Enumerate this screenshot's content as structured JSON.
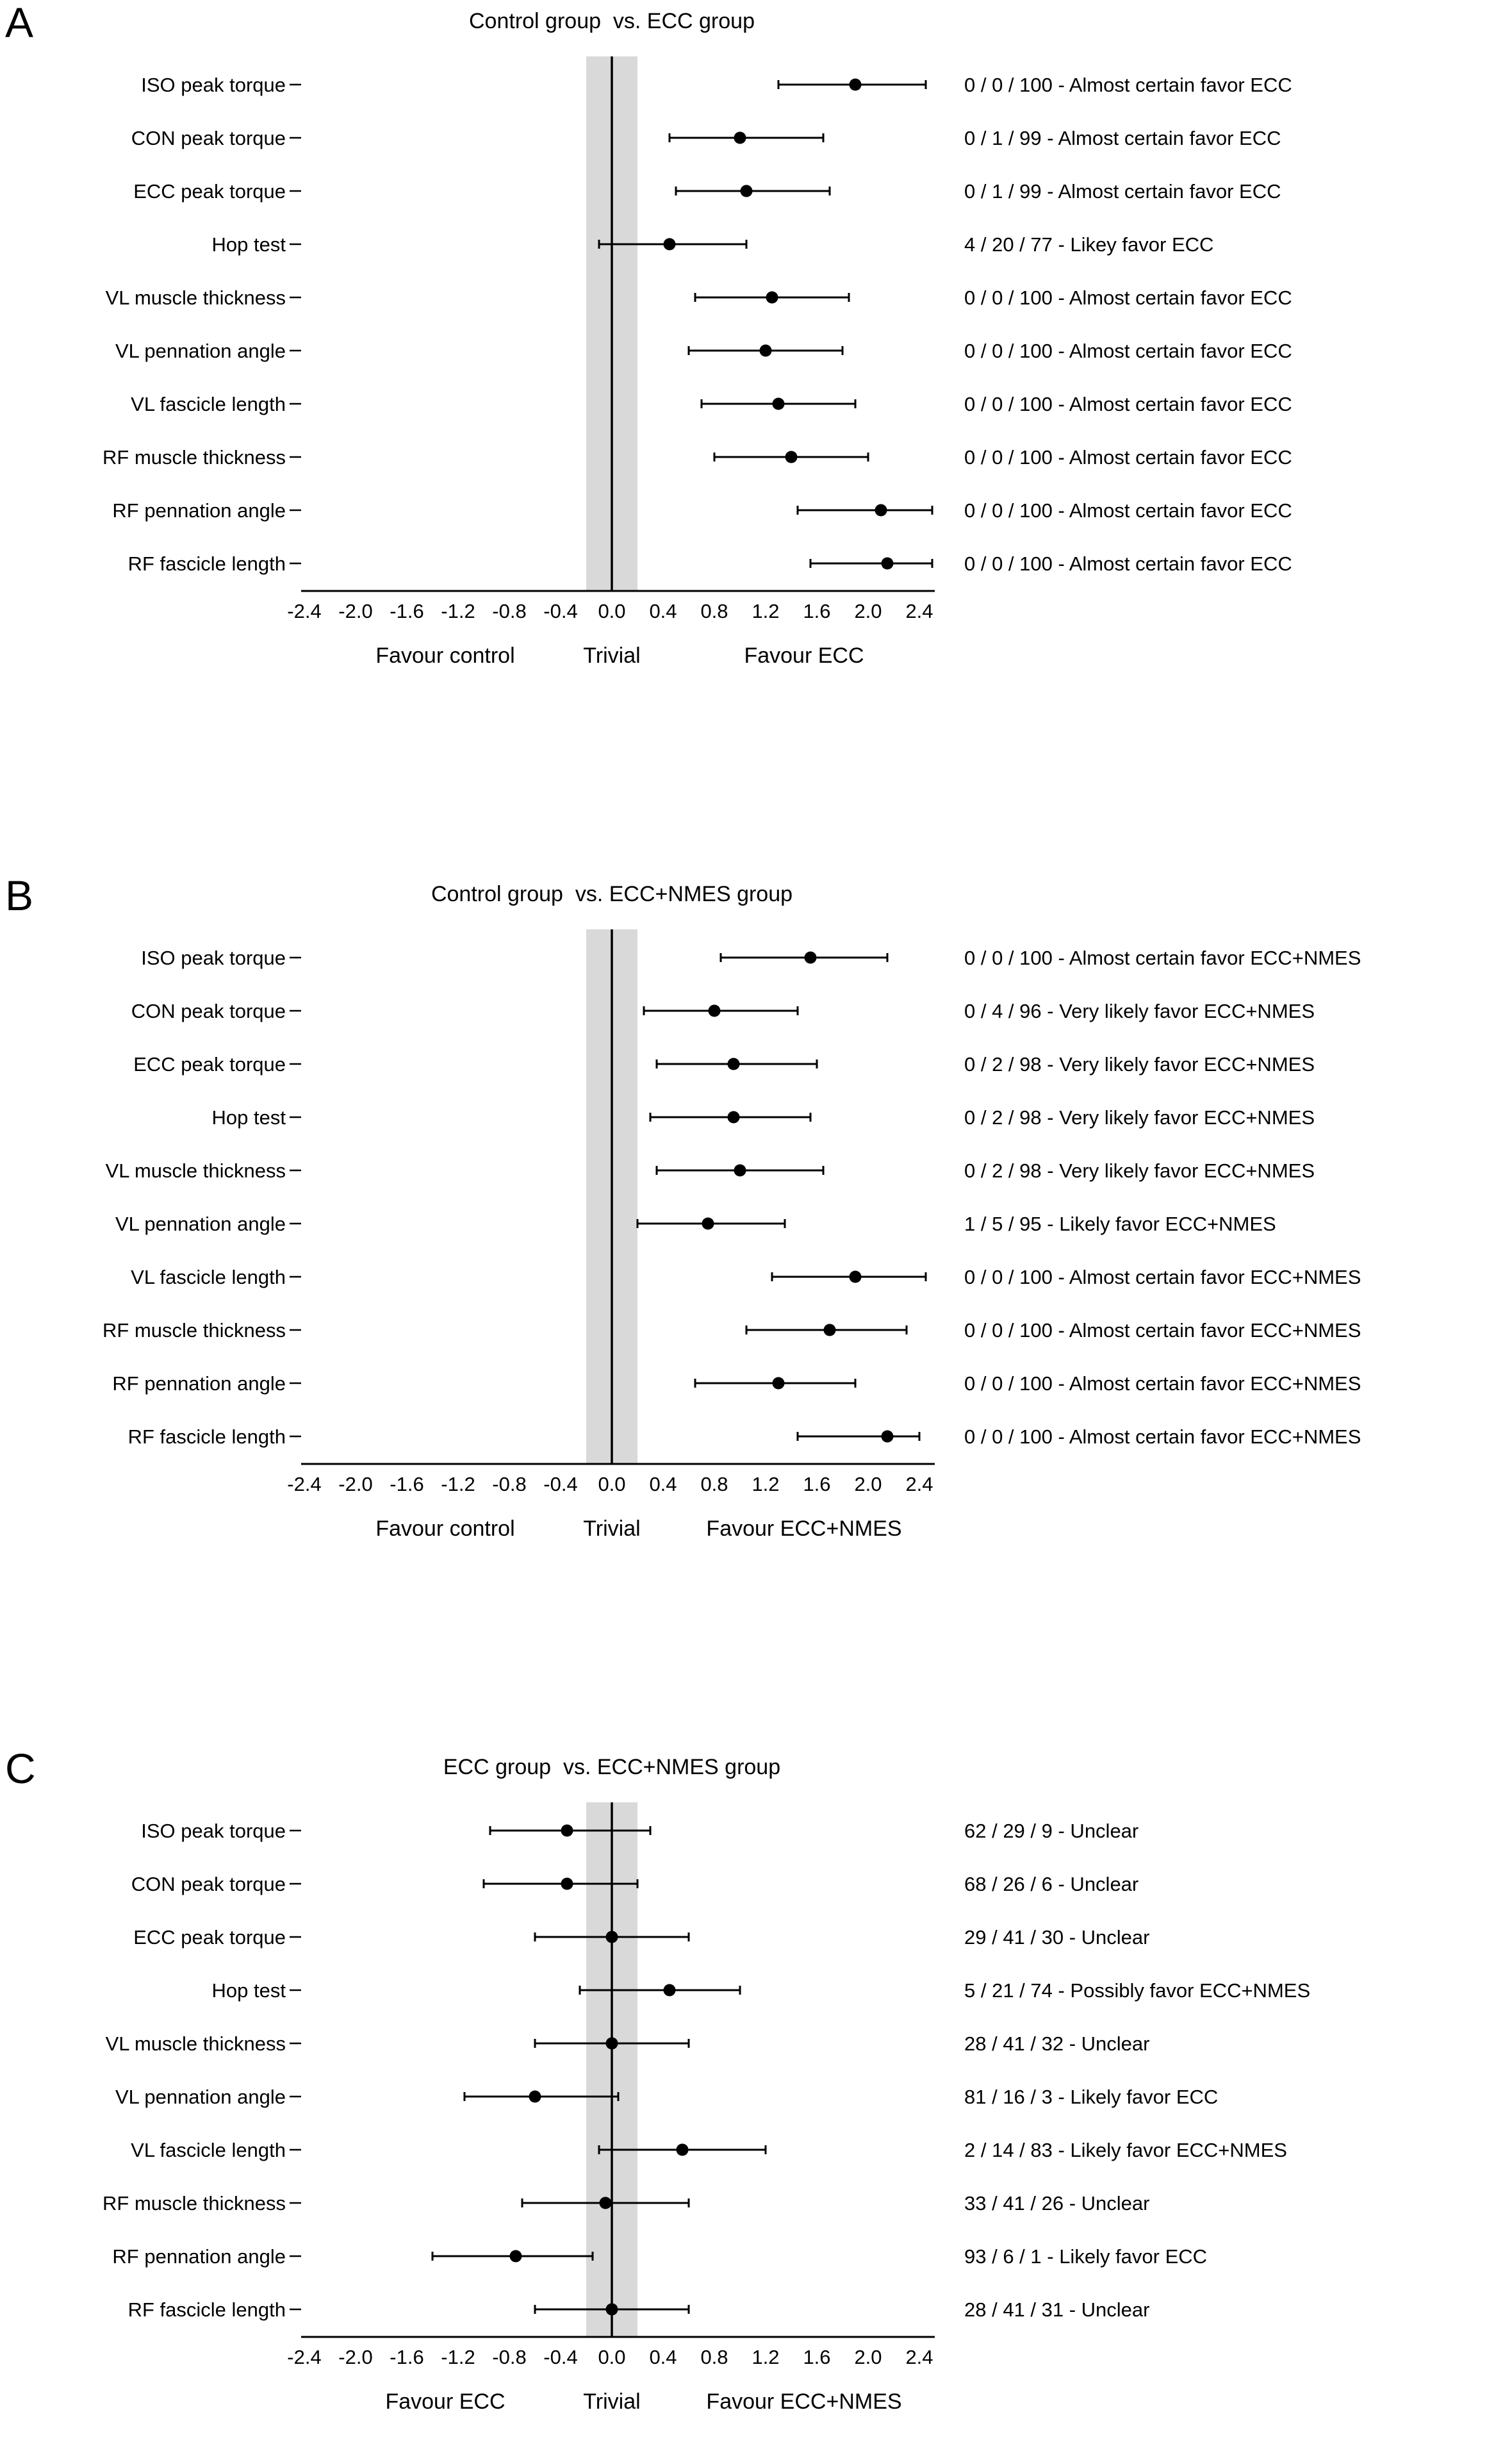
{
  "figure": {
    "background_color": "#ffffff",
    "text_color": "#000000",
    "trivial_band_color": "#d9d9d9",
    "marker_color": "#000000"
  },
  "chart_data": [
    {
      "type": "scatter",
      "subtype": "forest-plot",
      "panel_label": "A",
      "title": "Control group  vs. ECC group",
      "xlim": [
        -2.4,
        2.4
      ],
      "x_ticks": [
        "-2.4",
        "-2.0",
        "-1.6",
        "-1.2",
        "-0.8",
        "-0.4",
        "0.0",
        "0.4",
        "0.8",
        "1.2",
        "1.6",
        "2.0",
        "2.4"
      ],
      "trivial_band": [
        -0.2,
        0.2
      ],
      "zero_line": 0,
      "grid": false,
      "region_labels": {
        "left": "Favour control",
        "center": "Trivial",
        "right": "Favour ECC"
      },
      "rows": [
        {
          "label": "ISO peak torque",
          "point": 1.9,
          "ci": [
            1.3,
            2.45
          ],
          "annotation": "0 / 0 / 100 - Almost certain favor ECC"
        },
        {
          "label": "CON peak torque",
          "point": 1.0,
          "ci": [
            0.45,
            1.65
          ],
          "annotation": "0 / 1 / 99 - Almost certain favor ECC"
        },
        {
          "label": "ECC peak torque",
          "point": 1.05,
          "ci": [
            0.5,
            1.7
          ],
          "annotation": "0 / 1 / 99 - Almost certain favor ECC"
        },
        {
          "label": "Hop test",
          "point": 0.45,
          "ci": [
            -0.1,
            1.05
          ],
          "annotation": "4 / 20 / 77 - Likey favor ECC"
        },
        {
          "label": "VL muscle thickness",
          "point": 1.25,
          "ci": [
            0.65,
            1.85
          ],
          "annotation": "0 / 0 / 100 - Almost certain favor ECC"
        },
        {
          "label": "VL pennation angle",
          "point": 1.2,
          "ci": [
            0.6,
            1.8
          ],
          "annotation": "0 / 0 / 100 - Almost certain favor ECC"
        },
        {
          "label": "VL fascicle length",
          "point": 1.3,
          "ci": [
            0.7,
            1.9
          ],
          "annotation": "0 / 0 / 100 - Almost certain favor ECC"
        },
        {
          "label": "RF muscle thickness",
          "point": 1.4,
          "ci": [
            0.8,
            2.0
          ],
          "annotation": "0 / 0 / 100 - Almost certain favor ECC"
        },
        {
          "label": "RF pennation angle",
          "point": 2.1,
          "ci": [
            1.45,
            2.5
          ],
          "annotation": "0 / 0 / 100 - Almost certain favor ECC"
        },
        {
          "label": "RF fascicle length",
          "point": 2.15,
          "ci": [
            1.55,
            2.5
          ],
          "annotation": "0 / 0 / 100 - Almost certain favor ECC"
        }
      ]
    },
    {
      "type": "scatter",
      "subtype": "forest-plot",
      "panel_label": "B",
      "title": "Control group  vs. ECC+NMES group",
      "xlim": [
        -2.4,
        2.4
      ],
      "x_ticks": [
        "-2.4",
        "-2.0",
        "-1.6",
        "-1.2",
        "-0.8",
        "-0.4",
        "0.0",
        "0.4",
        "0.8",
        "1.2",
        "1.6",
        "2.0",
        "2.4"
      ],
      "trivial_band": [
        -0.2,
        0.2
      ],
      "zero_line": 0,
      "grid": false,
      "region_labels": {
        "left": "Favour control",
        "center": "Trivial",
        "right": "Favour ECC+NMES"
      },
      "rows": [
        {
          "label": "ISO peak torque",
          "point": 1.55,
          "ci": [
            0.85,
            2.15
          ],
          "annotation": "0 / 0 / 100 - Almost certain favor ECC+NMES"
        },
        {
          "label": "CON peak torque",
          "point": 0.8,
          "ci": [
            0.25,
            1.45
          ],
          "annotation": "0 / 4 / 96 - Very likely favor ECC+NMES"
        },
        {
          "label": "ECC peak torque",
          "point": 0.95,
          "ci": [
            0.35,
            1.6
          ],
          "annotation": "0 / 2 / 98 - Very likely favor ECC+NMES"
        },
        {
          "label": "Hop test",
          "point": 0.95,
          "ci": [
            0.3,
            1.55
          ],
          "annotation": "0 / 2 / 98 - Very likely favor ECC+NMES"
        },
        {
          "label": "VL muscle thickness",
          "point": 1.0,
          "ci": [
            0.35,
            1.65
          ],
          "annotation": "0 / 2 / 98 - Very likely favor ECC+NMES"
        },
        {
          "label": "VL pennation angle",
          "point": 0.75,
          "ci": [
            0.2,
            1.35
          ],
          "annotation": "1 / 5 / 95 - Likely favor ECC+NMES"
        },
        {
          "label": "VL fascicle length",
          "point": 1.9,
          "ci": [
            1.25,
            2.45
          ],
          "annotation": "0 / 0 / 100 - Almost certain favor ECC+NMES"
        },
        {
          "label": "RF muscle thickness",
          "point": 1.7,
          "ci": [
            1.05,
            2.3
          ],
          "annotation": "0 / 0 / 100 - Almost certain favor ECC+NMES"
        },
        {
          "label": "RF pennation angle",
          "point": 1.3,
          "ci": [
            0.65,
            1.9
          ],
          "annotation": "0 / 0 / 100 - Almost certain favor ECC+NMES"
        },
        {
          "label": "RF fascicle length",
          "point": 2.15,
          "ci": [
            1.45,
            2.4
          ],
          "annotation": "0 / 0 / 100 - Almost certain favor ECC+NMES"
        }
      ]
    },
    {
      "type": "scatter",
      "subtype": "forest-plot",
      "panel_label": "C",
      "title": "ECC group  vs. ECC+NMES group",
      "xlim": [
        -2.4,
        2.4
      ],
      "x_ticks": [
        "-2.4",
        "-2.0",
        "-1.6",
        "-1.2",
        "-0.8",
        "-0.4",
        "0.0",
        "0.4",
        "0.8",
        "1.2",
        "1.6",
        "2.0",
        "2.4"
      ],
      "trivial_band": [
        -0.2,
        0.2
      ],
      "zero_line": 0,
      "grid": false,
      "region_labels": {
        "left": "Favour ECC",
        "center": "Trivial",
        "right": "Favour ECC+NMES"
      },
      "rows": [
        {
          "label": "ISO peak torque",
          "point": -0.35,
          "ci": [
            -0.95,
            0.3
          ],
          "annotation": "62 / 29 / 9 -  Unclear"
        },
        {
          "label": "CON peak torque",
          "point": -0.35,
          "ci": [
            -1.0,
            0.2
          ],
          "annotation": "68 / 26 / 6 -  Unclear"
        },
        {
          "label": "ECC peak torque",
          "point": 0.0,
          "ci": [
            -0.6,
            0.6
          ],
          "annotation": "29 / 41 / 30 -  Unclear"
        },
        {
          "label": "Hop test",
          "point": 0.45,
          "ci": [
            -0.25,
            1.0
          ],
          "annotation": "5 / 21 / 74 -  Possibly favor ECC+NMES"
        },
        {
          "label": "VL muscle thickness",
          "point": 0.0,
          "ci": [
            -0.6,
            0.6
          ],
          "annotation": "28 / 41 / 32 -  Unclear"
        },
        {
          "label": "VL pennation angle",
          "point": -0.6,
          "ci": [
            -1.15,
            0.05
          ],
          "annotation": "81 / 16 / 3 -  Likely favor ECC"
        },
        {
          "label": "VL fascicle length",
          "point": 0.55,
          "ci": [
            -0.1,
            1.2
          ],
          "annotation": "2 / 14 / 83 -  Likely favor ECC+NMES"
        },
        {
          "label": "RF muscle thickness",
          "point": -0.05,
          "ci": [
            -0.7,
            0.6
          ],
          "annotation": "33 / 41 / 26 -  Unclear"
        },
        {
          "label": "RF pennation angle",
          "point": -0.75,
          "ci": [
            -1.4,
            -0.15
          ],
          "annotation": "93 / 6 / 1 -  Likely favor ECC"
        },
        {
          "label": "RF fascicle length",
          "point": 0.0,
          "ci": [
            -0.6,
            0.6
          ],
          "annotation": "28 / 41 / 31 -  Unclear"
        }
      ]
    }
  ]
}
